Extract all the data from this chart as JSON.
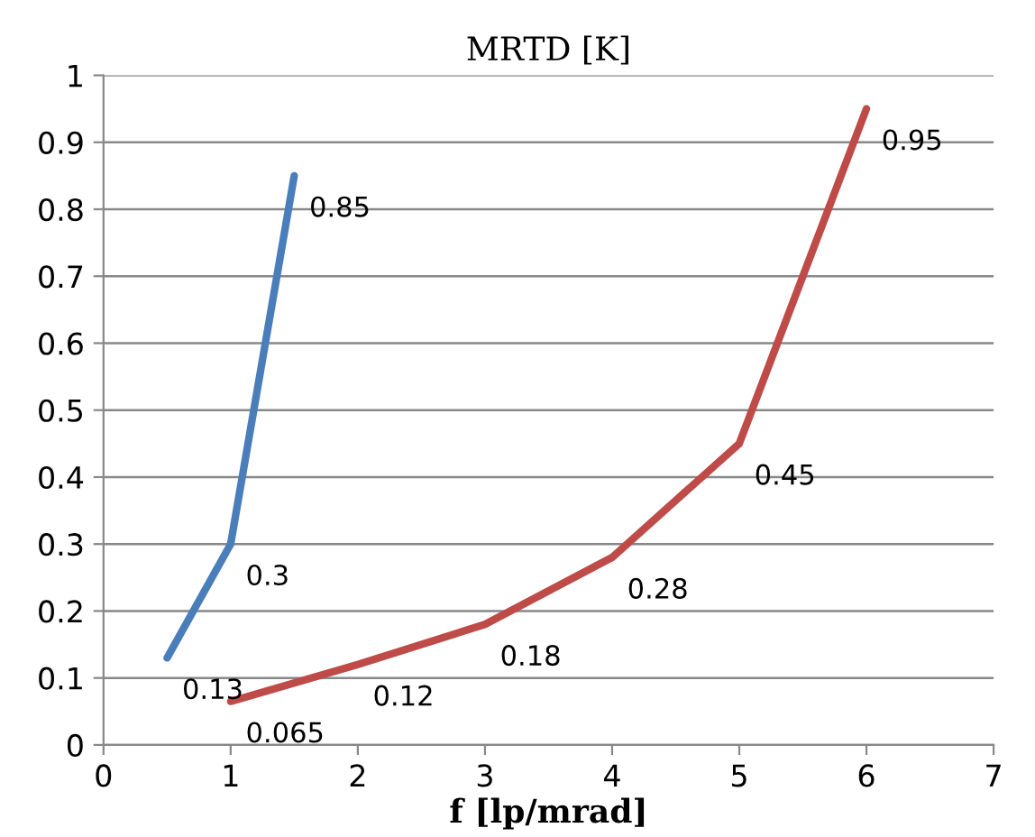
{
  "chart_data": {
    "type": "line",
    "title": "MRTD [K]",
    "xlabel": "f [lp/mrad]",
    "series": [
      {
        "color": "#4a7ebb",
        "x": [
          0.5,
          1,
          1.5
        ],
        "values": [
          0.13,
          0.3,
          0.85
        ]
      },
      {
        "color": "#be4b48",
        "x": [
          1,
          2,
          3,
          4,
          5,
          6
        ],
        "values": [
          0.065,
          0.12,
          0.18,
          0.28,
          0.45,
          0.95
        ]
      }
    ],
    "xlim": [
      0,
      7
    ],
    "xticks": [
      0,
      1,
      2,
      3,
      4,
      5,
      6,
      7
    ],
    "ylim": [
      0,
      1
    ],
    "yticks": [
      0,
      0.1,
      0.2,
      0.3,
      0.4,
      0.5,
      0.6,
      0.7,
      0.8,
      0.9,
      1
    ],
    "grid": "y",
    "data_labels": true,
    "marker": "none",
    "line_style": "solid"
  }
}
